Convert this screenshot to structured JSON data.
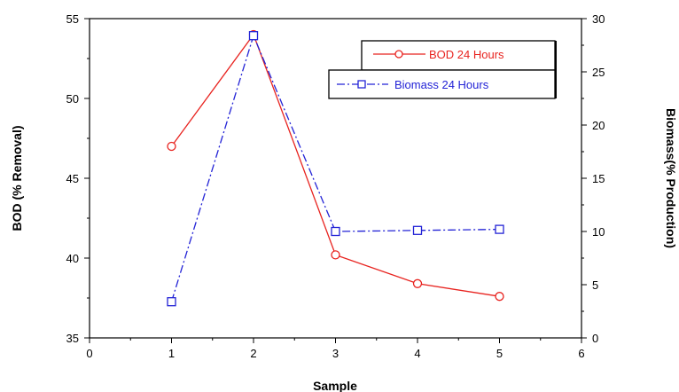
{
  "chart_data": {
    "type": "line",
    "xlabel": "Sample",
    "ylabel_left": "BOD (% Removal)",
    "ylabel_right": "Biomass(% Production)",
    "xlim": [
      0,
      6
    ],
    "ylim_left": [
      35,
      55
    ],
    "ylim_right": [
      0,
      30
    ],
    "x_ticks": [
      "0",
      "1",
      "2",
      "3",
      "4",
      "5",
      "6"
    ],
    "y_left_ticks": [
      "35",
      "40",
      "45",
      "50",
      "55"
    ],
    "y_right_ticks": [
      "0",
      "5",
      "10",
      "15",
      "20",
      "25",
      "30"
    ],
    "grid": false,
    "legend_placement": "top-right",
    "series": [
      {
        "name": "BOD 24 Hours",
        "axis": "left",
        "color": "#e8231f",
        "marker": "circle",
        "line_style": "solid",
        "x": [
          1,
          2,
          3,
          4,
          5
        ],
        "values": [
          47.0,
          54.0,
          40.2,
          38.4,
          37.6
        ]
      },
      {
        "name": "Biomass 24 Hours",
        "axis": "right",
        "color": "#2323d6",
        "marker": "square",
        "line_style": "dashdot",
        "x": [
          1,
          2,
          3,
          4,
          5
        ],
        "values": [
          3.4,
          28.4,
          10.0,
          10.1,
          10.2
        ]
      }
    ]
  }
}
